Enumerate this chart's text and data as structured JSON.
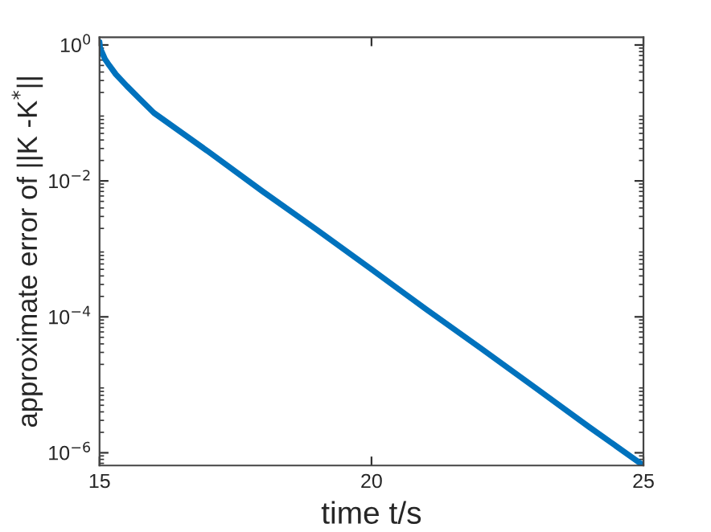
{
  "chart_data": {
    "type": "line",
    "xlabel": "time t/s",
    "ylabel": "approximate error of ||K -K$^{*}$||",
    "log": "y",
    "grid": false,
    "legend": false,
    "marker": "none",
    "line_style": "solid",
    "xlim": [
      15,
      25
    ],
    "xticks": [
      15,
      20,
      25
    ],
    "ylim": [
      6.5e-07,
      1.3
    ],
    "yticks": [
      {
        "value": 1,
        "label": "10$^{0}$"
      },
      {
        "value": 0.01,
        "label": "10$^{−2}$"
      },
      {
        "value": 0.0001,
        "label": "10$^{−4}$"
      },
      {
        "value": 1e-06,
        "label": "10$^{−6}$"
      }
    ],
    "series": [
      {
        "color": "#0072bd",
        "x": [
          15,
          15.01,
          15.04,
          15.1,
          15.18,
          15.3,
          15.5,
          15.76,
          16,
          17,
          18,
          19,
          20,
          21,
          22,
          23,
          24,
          25
        ],
        "values": [
          1.1,
          0.9,
          0.8,
          0.62,
          0.5,
          0.37,
          0.25,
          0.155,
          0.1,
          0.027,
          0.007,
          0.0019,
          0.0005,
          0.00013,
          3.5e-05,
          9.2e-06,
          2.4e-06,
          6.5e-07
        ]
      }
    ]
  }
}
